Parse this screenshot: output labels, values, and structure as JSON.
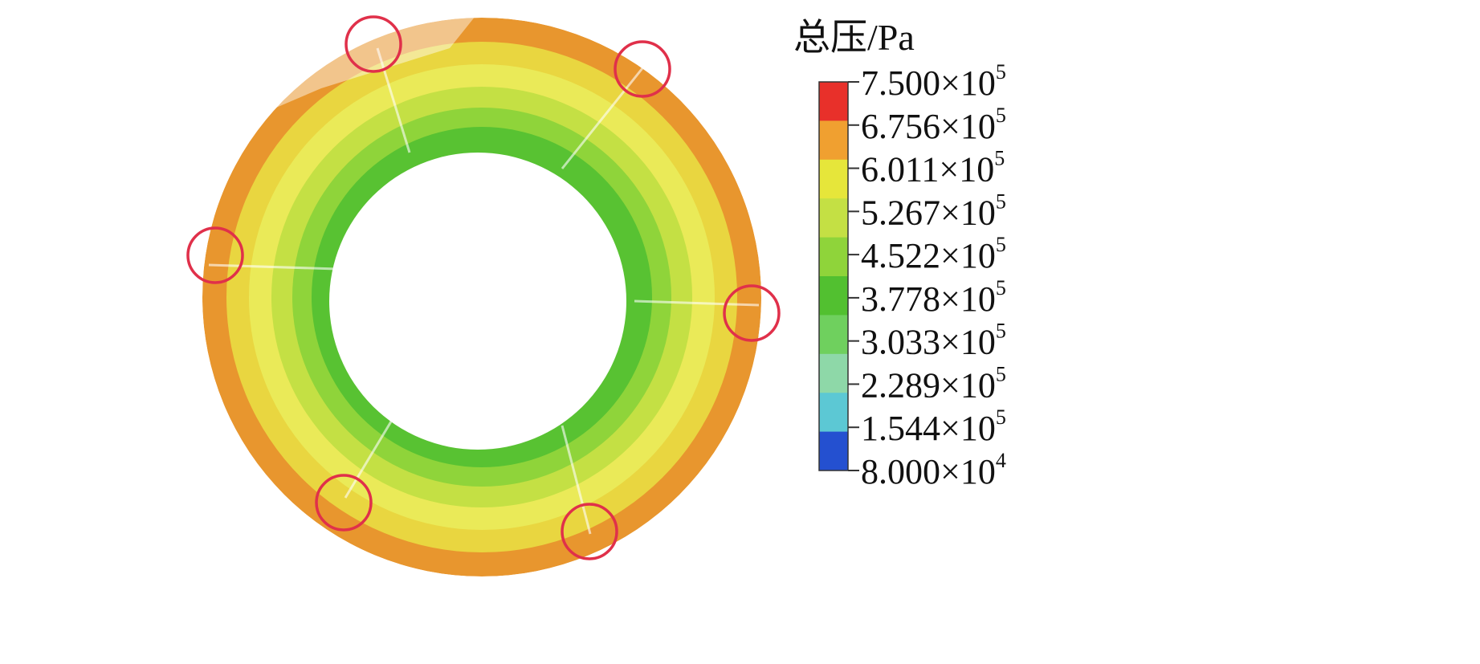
{
  "legend": {
    "title": "总压/Pa",
    "times_base": "×10",
    "ticks": [
      {
        "mantissa": "7.500",
        "exponent": "5"
      },
      {
        "mantissa": "6.756",
        "exponent": "5"
      },
      {
        "mantissa": "6.011",
        "exponent": "5"
      },
      {
        "mantissa": "5.267",
        "exponent": "5"
      },
      {
        "mantissa": "4.522",
        "exponent": "5"
      },
      {
        "mantissa": "3.778",
        "exponent": "5"
      },
      {
        "mantissa": "3.033",
        "exponent": "5"
      },
      {
        "mantissa": "2.289",
        "exponent": "5"
      },
      {
        "mantissa": "1.544",
        "exponent": "5"
      },
      {
        "mantissa": "8.000",
        "exponent": "4"
      }
    ],
    "colors": [
      "#e8302a",
      "#f0a030",
      "#e6e63a",
      "#c4e044",
      "#8fd43a",
      "#52c030",
      "#6fd05e",
      "#8ed8a8",
      "#5cc8d4",
      "#2450d0"
    ]
  }
}
